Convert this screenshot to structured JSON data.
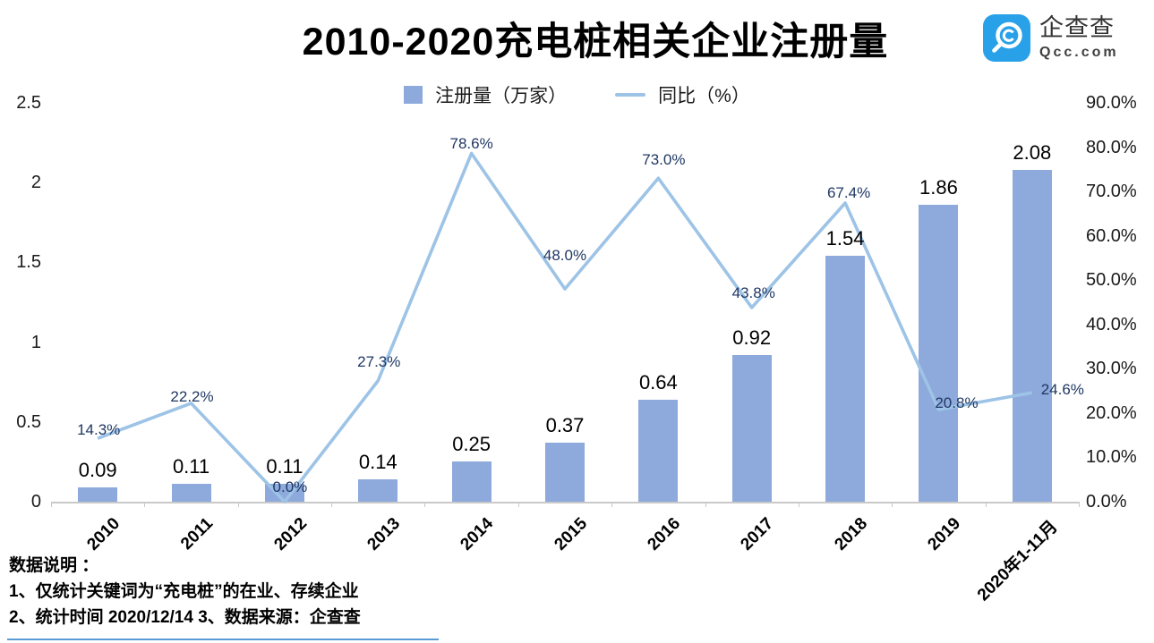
{
  "header": {
    "title": "2010-2020充电桩相关企业注册量",
    "logo": {
      "name": "企查查",
      "domain": "Qcc.com",
      "brand_color": "#29A1E9",
      "text_color": "#333333"
    }
  },
  "legend": {
    "items": [
      {
        "label": "注册量（万家）",
        "swatch": "square",
        "color": "#8EA9DB"
      },
      {
        "label": "同比（%）",
        "swatch": "line",
        "color": "#9DC3E6"
      }
    ]
  },
  "chart_data": {
    "type": "bar+line",
    "title": "2010-2020充电桩相关企业注册量",
    "categories": [
      "2010",
      "2011",
      "2012",
      "2013",
      "2014",
      "2015",
      "2016",
      "2017",
      "2018",
      "2019",
      "2020年1-11月"
    ],
    "series": [
      {
        "name": "注册量（万家）",
        "type": "bar",
        "axis": "left",
        "color": "#8EA9DB",
        "values": [
          0.09,
          0.11,
          0.11,
          0.14,
          0.25,
          0.37,
          0.64,
          0.92,
          1.54,
          1.86,
          2.08
        ],
        "labels": [
          "0.09",
          "0.11",
          "0.11",
          "0.14",
          "0.25",
          "0.37",
          "0.64",
          "0.92",
          "1.54",
          "1.86",
          "2.08"
        ],
        "label_color": "#000000"
      },
      {
        "name": "同比（%）",
        "type": "line",
        "axis": "right",
        "color": "#9DC3E6",
        "values": [
          14.3,
          22.2,
          0.0,
          27.3,
          78.6,
          48.0,
          73.0,
          43.8,
          67.4,
          20.8,
          24.6
        ],
        "labels": [
          "14.3%",
          "22.2%",
          "0.0%",
          "27.3%",
          "78.6%",
          "48.0%",
          "73.0%",
          "43.8%",
          "67.4%",
          "20.8%",
          "24.6%"
        ],
        "label_color": "#1F3864"
      }
    ],
    "left_axis": {
      "min": 0,
      "max": 2.5,
      "ticks": [
        "2.5",
        "2",
        "1.5",
        "1",
        "0.5",
        "0"
      ]
    },
    "right_axis": {
      "min": 0,
      "max": 90,
      "ticks": [
        "90.0%",
        "80.0%",
        "70.0%",
        "60.0%",
        "50.0%",
        "40.0%",
        "30.0%",
        "20.0%",
        "10.0%",
        "0.0%"
      ]
    },
    "grid": "none",
    "legend_position": "top-center",
    "axis_color": "#C9C9C9"
  },
  "footnotes": {
    "heading": "数据说明 ：",
    "line1": "1、仅统计关键词为“充电桩”的在业、存续企业",
    "line2": "2、统计时间 2020/12/14    3、数据来源：企查查",
    "underline_color": "#5B9BD5"
  }
}
